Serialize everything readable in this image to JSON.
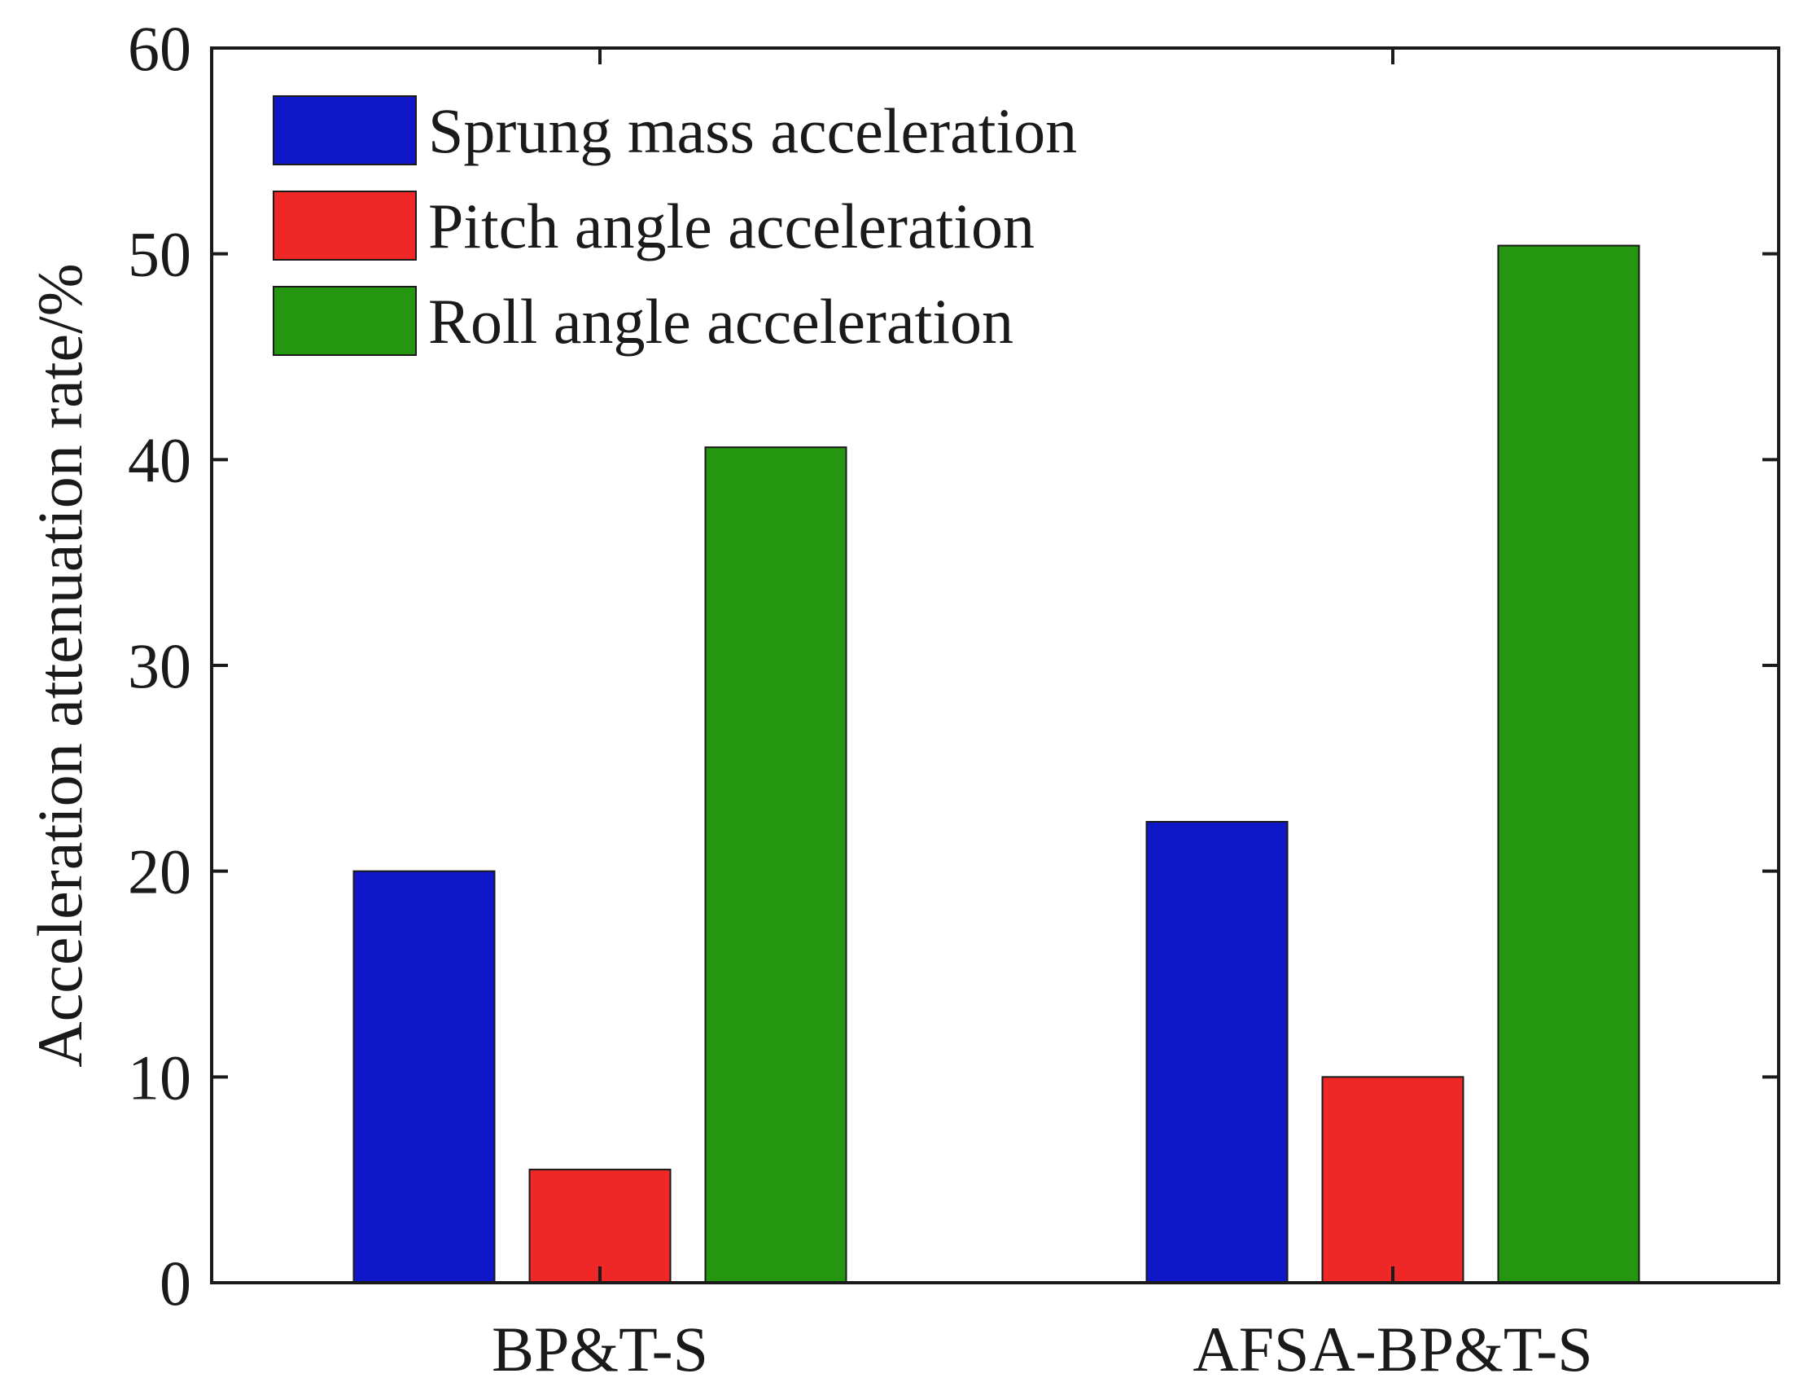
{
  "chart_data": {
    "type": "bar",
    "title": "",
    "xlabel": "",
    "ylabel": "Acceleration attenuation rate/%",
    "categories": [
      "BP&T-S",
      "AFSA-BP&T-S"
    ],
    "series": [
      {
        "name": "Sprung mass acceleration",
        "color": "#0f17c8",
        "values": [
          20.0,
          22.4
        ]
      },
      {
        "name": "Pitch angle acceleration",
        "color": "#ef2727",
        "values": [
          5.5,
          10.0
        ]
      },
      {
        "name": "Roll angle acceleration",
        "color": "#25960f",
        "values": [
          40.6,
          50.4
        ]
      }
    ],
    "ylim": [
      0,
      60
    ],
    "yticks": [
      "0",
      "10",
      "20",
      "30",
      "40",
      "50",
      "60"
    ],
    "grid": false,
    "legend_position": "top-left"
  }
}
